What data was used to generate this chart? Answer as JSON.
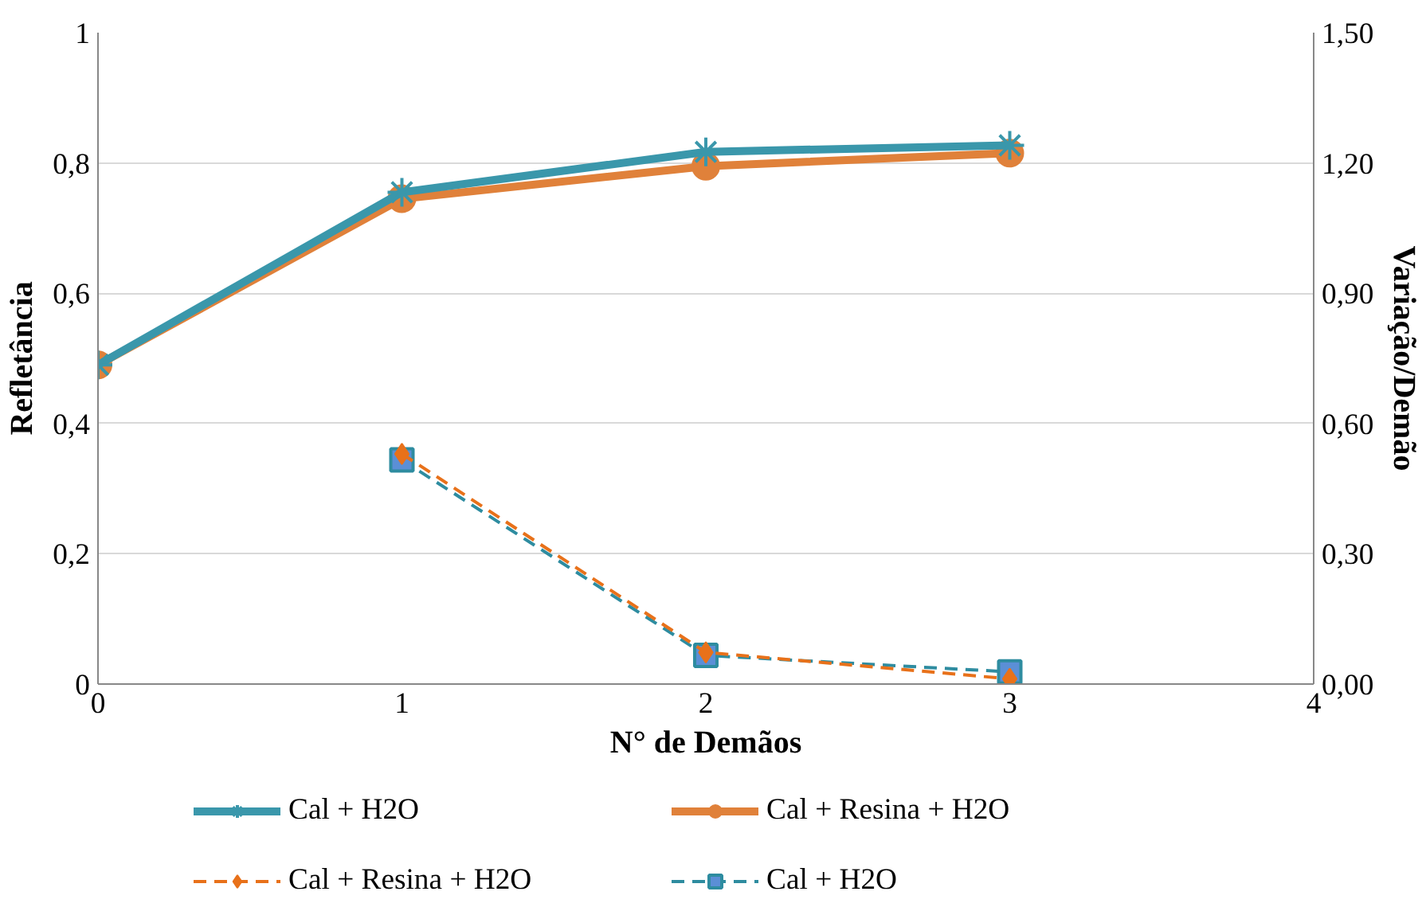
{
  "chart_data": {
    "type": "line",
    "xlabel": "N° de Demãos",
    "ylabel": "Refletância",
    "y2label": "Variação/Demão",
    "xlim": [
      0,
      4
    ],
    "xticks": [
      0,
      1,
      2,
      3,
      4
    ],
    "ylim": [
      0,
      1
    ],
    "yticks": [
      {
        "value": 0,
        "label": "0"
      },
      {
        "value": 0.2,
        "label": "0,2"
      },
      {
        "value": 0.4,
        "label": "0,4"
      },
      {
        "value": 0.6,
        "label": "0,6"
      },
      {
        "value": 0.8,
        "label": "0,8"
      },
      {
        "value": 1,
        "label": "1"
      }
    ],
    "y2lim": [
      0,
      1.5
    ],
    "y2ticks": [
      {
        "value": 0,
        "label": "0,00"
      },
      {
        "value": 0.3,
        "label": "0,30"
      },
      {
        "value": 0.6,
        "label": "0,60"
      },
      {
        "value": 0.9,
        "label": "0,90"
      },
      {
        "value": 1.2,
        "label": "1,20"
      },
      {
        "value": 1.5,
        "label": "1,50"
      }
    ],
    "grid": "y",
    "legend": "bottom",
    "series": [
      {
        "name": "Cal + H2O",
        "color": "#3a97ab",
        "x": [
          0,
          1,
          2,
          3
        ],
        "values": [
          0.49,
          0.755,
          0.817,
          0.827
        ],
        "marker": "cross",
        "line_style": "solid"
      },
      {
        "name": "Cal + Resina + H2O",
        "color": "#e0813a",
        "x": [
          0,
          1,
          2,
          3
        ],
        "values": [
          0.49,
          0.745,
          0.795,
          0.815
        ],
        "marker": "circle",
        "line_style": "solid"
      },
      {
        "name": "Cal + Resina + H2O",
        "color": "#e8711a",
        "x": [
          1,
          2,
          3
        ],
        "values": [
          0.53,
          0.073,
          0.012
        ],
        "marker": "diamond",
        "line_style": "dashed",
        "axis": "y2"
      },
      {
        "name": "Cal + H2O",
        "color": "#2e8ca0",
        "x": [
          1,
          2,
          3
        ],
        "values": [
          0.516,
          0.066,
          0.028
        ],
        "marker": "square",
        "line_style": "dashed",
        "axis": "y2"
      }
    ]
  }
}
